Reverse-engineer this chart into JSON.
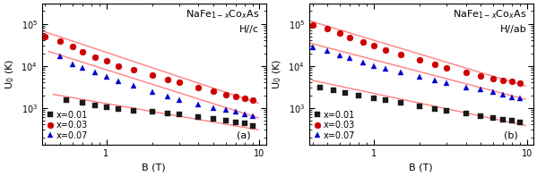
{
  "panel_a": {
    "title_line1": "NaFe$_{1-x}$Co$_x$As",
    "title_line2": "H//c",
    "label": "(a)",
    "series": [
      {
        "label": "x=0.01",
        "color": "#1a1a1a",
        "marker": "s",
        "B": [
          0.55,
          0.7,
          0.85,
          1.0,
          1.2,
          1.5,
          2.0,
          2.5,
          3.0,
          4.0,
          5.0,
          6.0,
          7.0,
          8.0,
          9.0
        ],
        "U0": [
          1500,
          1300,
          1150,
          1050,
          950,
          870,
          800,
          750,
          700,
          610,
          560,
          490,
          450,
          420,
          370
        ],
        "fit_B": [
          0.45,
          9.8
        ],
        "fit_U0": [
          2100,
          300
        ]
      },
      {
        "label": "x=0.03",
        "color": "#cc0000",
        "marker": "o",
        "B": [
          0.4,
          0.5,
          0.6,
          0.7,
          0.85,
          1.0,
          1.2,
          1.5,
          2.0,
          2.5,
          3.0,
          4.0,
          5.0,
          6.0,
          7.0,
          8.0,
          9.0
        ],
        "U0": [
          50000,
          38000,
          29000,
          22000,
          16000,
          13000,
          10000,
          8000,
          6000,
          4800,
          4000,
          3000,
          2500,
          2100,
          1900,
          1700,
          1500
        ],
        "fit_B": [
          0.35,
          9.8
        ],
        "fit_U0": [
          75000,
          1300
        ]
      },
      {
        "label": "x=0.07",
        "color": "#0000cc",
        "marker": "^",
        "B": [
          0.5,
          0.6,
          0.7,
          0.85,
          1.0,
          1.2,
          1.5,
          2.0,
          2.5,
          3.0,
          4.0,
          5.0,
          6.0,
          7.0,
          8.0,
          9.0
        ],
        "U0": [
          17000,
          11000,
          9000,
          7000,
          5500,
          4200,
          3300,
          2400,
          1900,
          1500,
          1200,
          1000,
          900,
          800,
          700,
          650
        ],
        "fit_B": [
          0.42,
          9.8
        ],
        "fit_U0": [
          22000,
          580
        ]
      }
    ]
  },
  "panel_b": {
    "title_line1": "NaFe$_{1-x}$Co$_x$As",
    "title_line2": "H//ab",
    "label": "(b)",
    "series": [
      {
        "label": "x=0.01",
        "color": "#1a1a1a",
        "marker": "s",
        "B": [
          0.45,
          0.55,
          0.65,
          0.8,
          1.0,
          1.2,
          1.5,
          2.0,
          2.5,
          3.0,
          4.0,
          5.0,
          6.0,
          7.0,
          8.0,
          9.0
        ],
        "U0": [
          3000,
          2600,
          2300,
          2000,
          1700,
          1500,
          1300,
          1100,
          950,
          850,
          730,
          650,
          580,
          530,
          490,
          460
        ],
        "fit_B": [
          0.4,
          9.8
        ],
        "fit_U0": [
          4500,
          380
        ]
      },
      {
        "label": "x=0.03",
        "color": "#cc0000",
        "marker": "o",
        "B": [
          0.4,
          0.5,
          0.6,
          0.7,
          0.85,
          1.0,
          1.2,
          1.5,
          2.0,
          2.5,
          3.0,
          4.0,
          5.0,
          6.0,
          7.0,
          8.0,
          9.0
        ],
        "U0": [
          95000,
          75000,
          60000,
          48000,
          37000,
          30000,
          24000,
          19000,
          14000,
          11000,
          9000,
          7000,
          5800,
          5000,
          4500,
          4200,
          3900
        ],
        "fit_B": [
          0.35,
          9.8
        ],
        "fit_U0": [
          130000,
          3300
        ]
      },
      {
        "label": "x=0.07",
        "color": "#0000cc",
        "marker": "^",
        "B": [
          0.4,
          0.5,
          0.6,
          0.7,
          0.85,
          1.0,
          1.2,
          1.5,
          2.0,
          2.5,
          3.0,
          4.0,
          5.0,
          6.0,
          7.0,
          8.0,
          9.0
        ],
        "U0": [
          28000,
          23000,
          18000,
          15000,
          12000,
          10000,
          8500,
          7000,
          5500,
          4500,
          3800,
          3100,
          2700,
          2400,
          2100,
          1800,
          1700
        ],
        "fit_B": [
          0.35,
          9.8
        ],
        "fit_U0": [
          38000,
          1600
        ]
      }
    ]
  },
  "xlim": [
    0.38,
    11
  ],
  "ylim": [
    130,
    300000
  ],
  "xlabel": "B (T)",
  "ylabel": "U$_0$ (K)",
  "marker_size": 5,
  "fit_color": "#ff8080",
  "fit_lw": 1.0,
  "bg_color": "#ffffff",
  "tick_labelsize": 7,
  "label_fontsize": 8,
  "legend_fontsize": 7,
  "annotation_fontsize": 8,
  "title_fontsize": 8
}
